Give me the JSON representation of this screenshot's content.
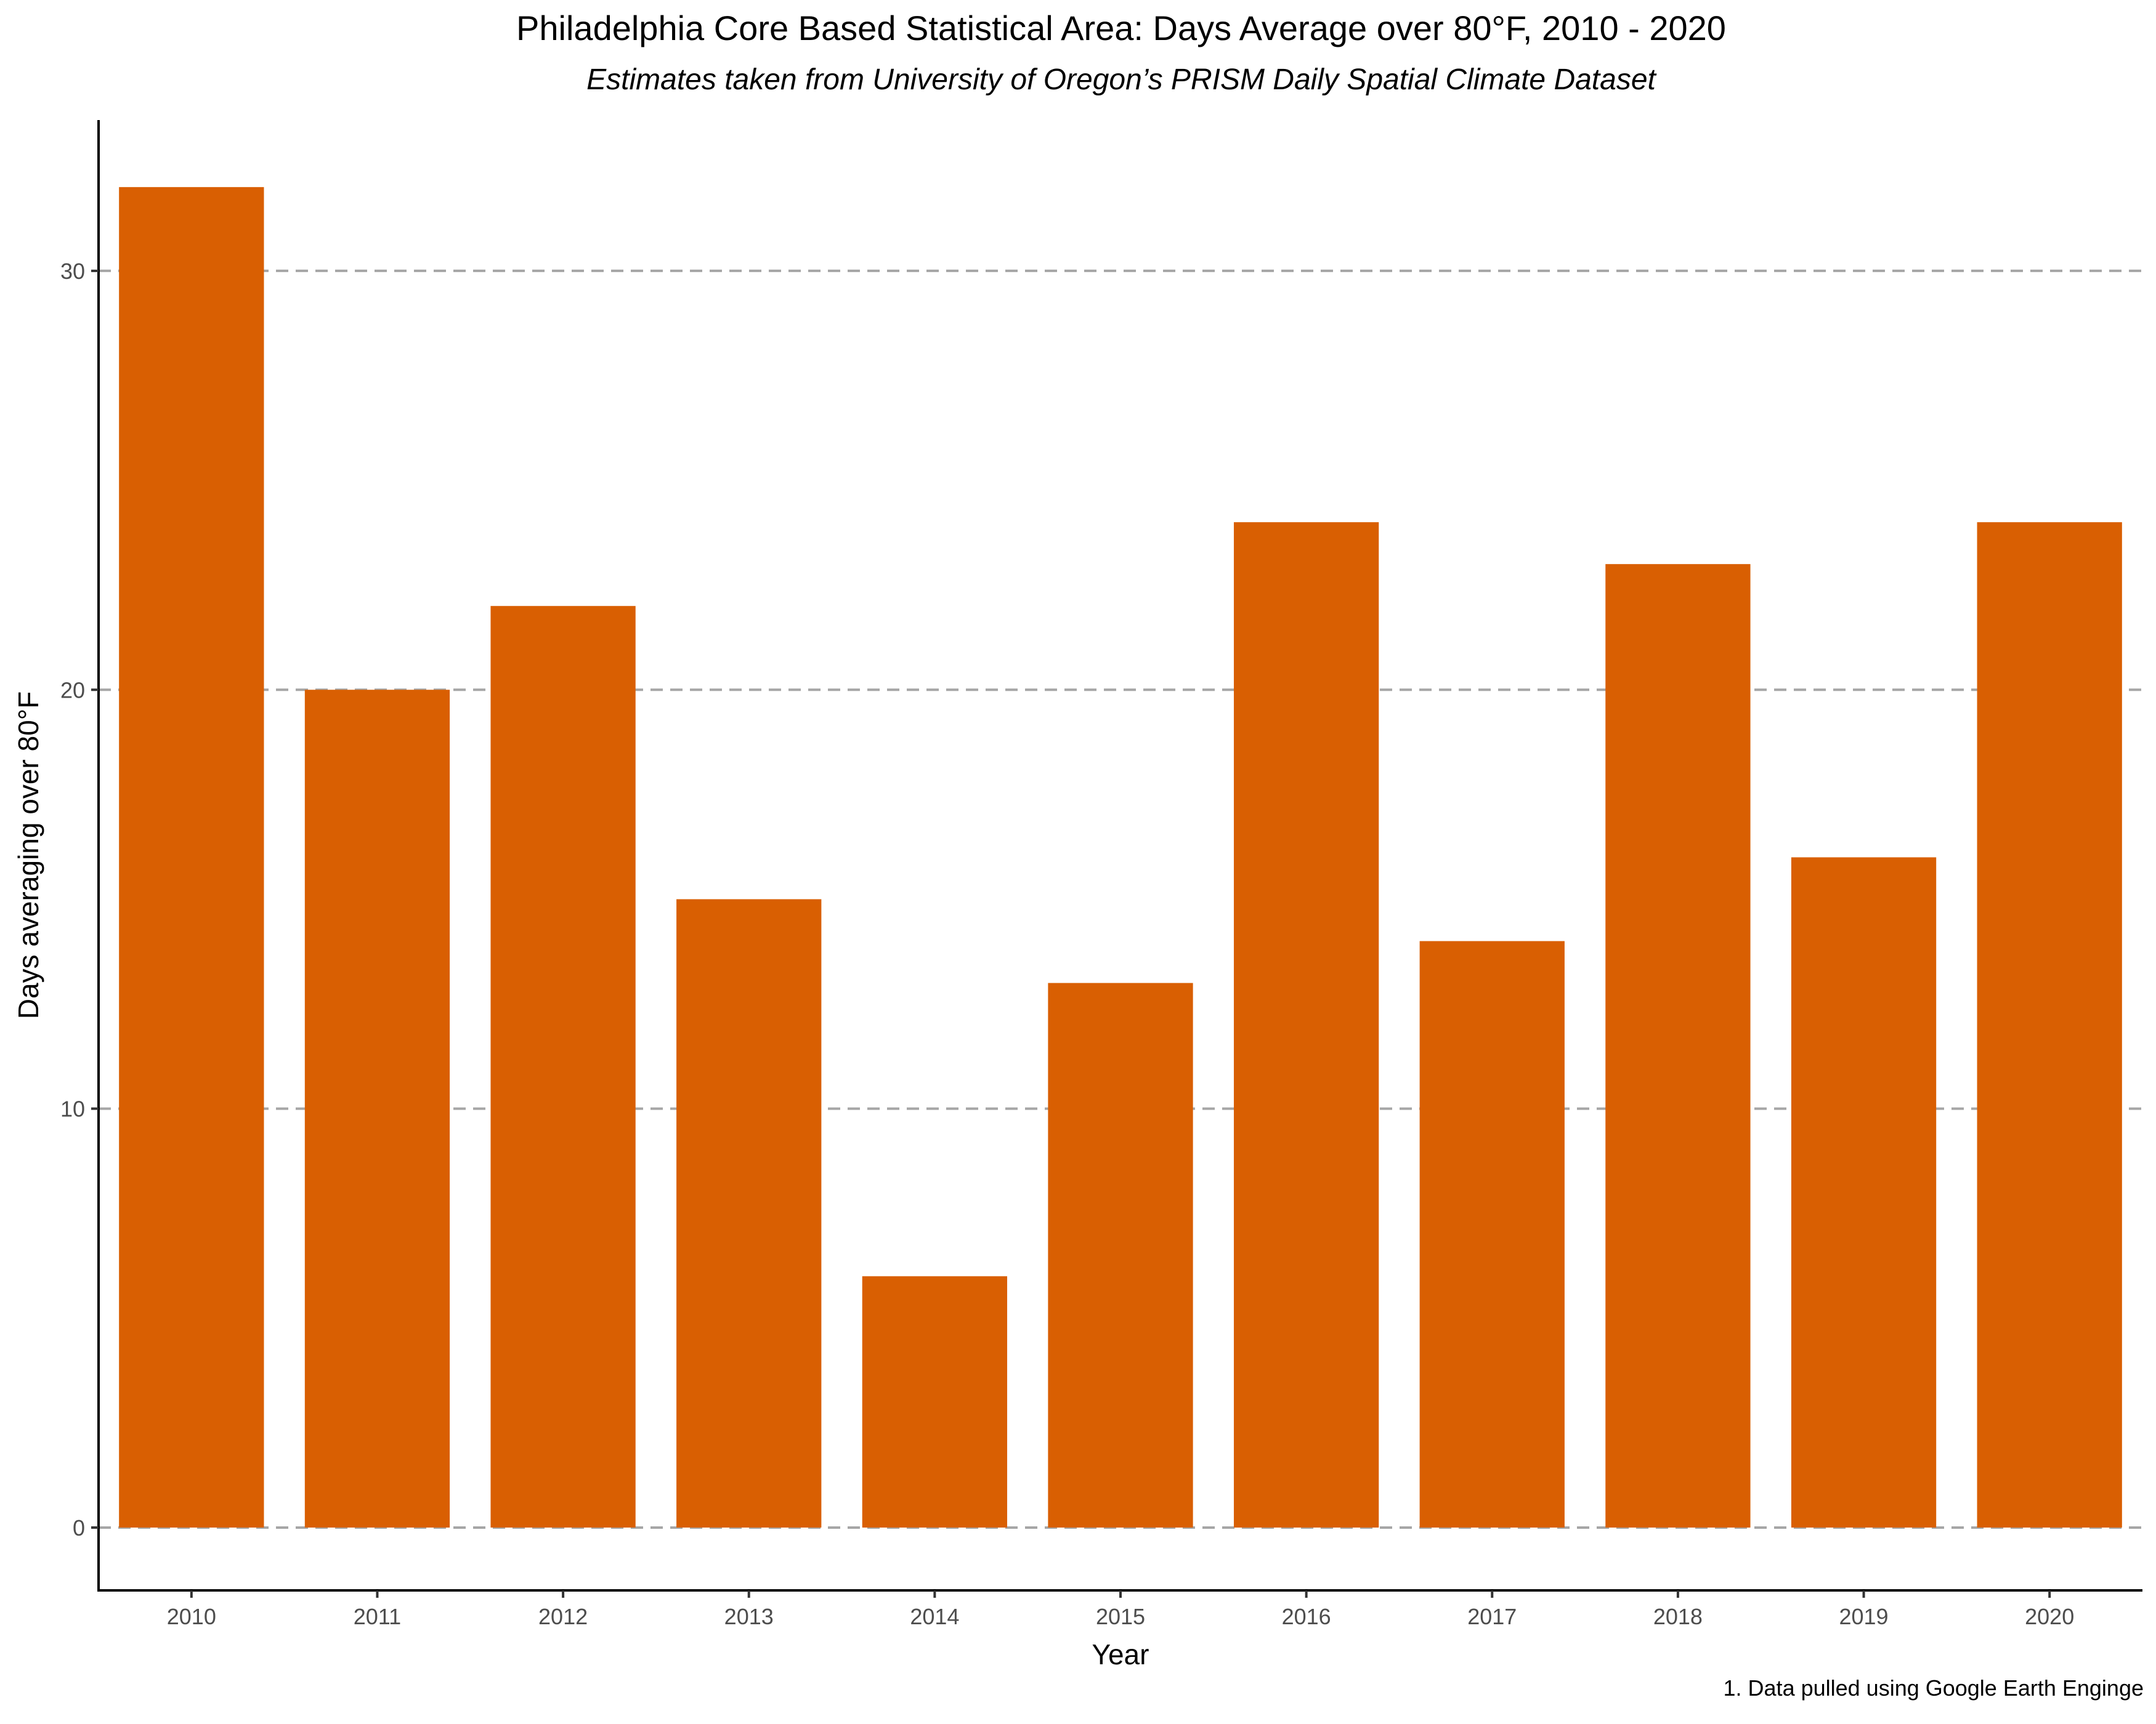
{
  "chart_data": {
    "type": "bar",
    "title": "Philadelphia Core Based Statistical Area: Days Average over 80°F, 2010 - 2020",
    "subtitle": "Estimates taken from University of Oregon’s PRISM Daily Spatial Climate Dataset",
    "xlabel": "Year",
    "ylabel": "Days averaging over 80°F",
    "caption": "1. Data pulled using Google Earth Enginge",
    "categories": [
      "2010",
      "2011",
      "2012",
      "2013",
      "2014",
      "2015",
      "2016",
      "2017",
      "2018",
      "2019",
      "2020"
    ],
    "values": [
      32,
      20,
      22,
      15,
      6,
      13,
      24,
      14,
      23,
      16,
      24
    ],
    "ylim": [
      -1.5,
      33.6
    ],
    "yticks": [
      0,
      10,
      20,
      30
    ],
    "grid": "horizontal dashed",
    "bar_color": "#d95f02",
    "grid_color": "#a6a6a6"
  }
}
